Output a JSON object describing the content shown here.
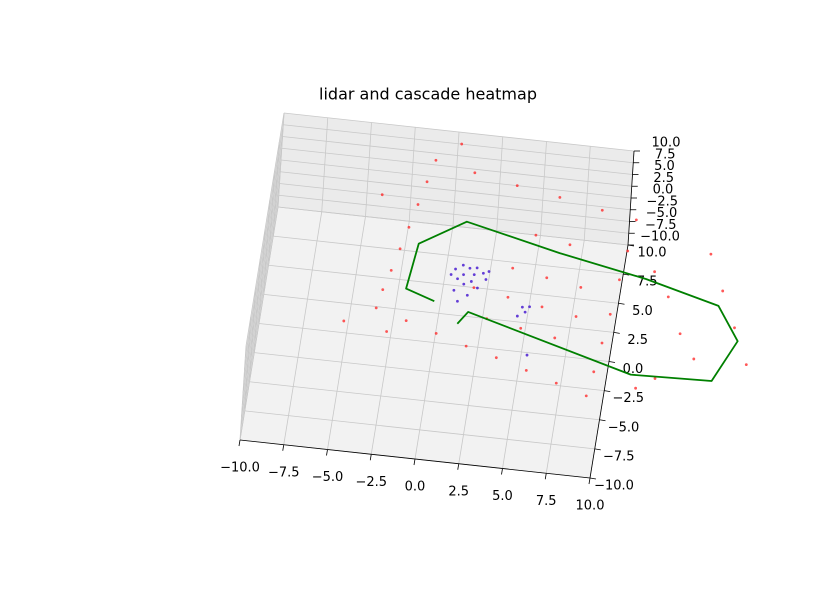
{
  "chart_data": {
    "type": "scatter3d",
    "title": "lidar and cascade heatmap",
    "xlim": [
      -10,
      10
    ],
    "ylim": [
      -10,
      10
    ],
    "zlim": [
      -10,
      10
    ],
    "xticks": [
      {
        "value": -10,
        "label": "−10.0"
      },
      {
        "value": -7.5,
        "label": "−7.5"
      },
      {
        "value": -5,
        "label": "−5.0"
      },
      {
        "value": -2.5,
        "label": "−2.5"
      },
      {
        "value": 0,
        "label": "0.0"
      },
      {
        "value": 2.5,
        "label": "2.5"
      },
      {
        "value": 5,
        "label": "5.0"
      },
      {
        "value": 7.5,
        "label": "7.5"
      },
      {
        "value": 10,
        "label": "10.0"
      }
    ],
    "yticks": [
      {
        "value": -10,
        "label": "−10.0"
      },
      {
        "value": -7.5,
        "label": "−7.5"
      },
      {
        "value": -5,
        "label": "−5.0"
      },
      {
        "value": -2.5,
        "label": "−2.5"
      },
      {
        "value": 0,
        "label": "0.0"
      },
      {
        "value": 2.5,
        "label": "2.5"
      },
      {
        "value": 5,
        "label": "5.0"
      },
      {
        "value": 7.5,
        "label": "7.5"
      },
      {
        "value": 10,
        "label": "10.0"
      }
    ],
    "zticks": [
      {
        "value": -10,
        "label": "−10.0"
      },
      {
        "value": -7.5,
        "label": "−7.5"
      },
      {
        "value": -5,
        "label": "−5.0"
      },
      {
        "value": -2.5,
        "label": "−2.5"
      },
      {
        "value": 0,
        "label": "0.0"
      },
      {
        "value": 2.5,
        "label": "2.5"
      },
      {
        "value": 5,
        "label": "5.0"
      },
      {
        "value": 7.5,
        "label": "7.5"
      },
      {
        "value": 10,
        "label": "10.0"
      }
    ],
    "grid": true,
    "series": [
      {
        "style": "points",
        "color": "#ff2020",
        "x": [
          -1.3,
          -1.6,
          -1.9,
          -2.2,
          -2.5,
          -2.8,
          -3.1,
          -3.3,
          -1.5,
          0.3,
          2.1,
          3.9,
          5.7,
          7.5,
          9.3,
          9.5,
          9.7,
          9.9,
          10.1,
          10.3,
          10.5,
          8.5,
          6,
          3.5,
          1,
          2,
          4,
          6,
          8,
          3,
          5,
          7,
          4,
          6,
          8,
          5,
          7,
          12,
          13,
          14,
          15,
          16,
          17,
          13,
          18,
          15,
          12,
          -4,
          -5,
          0,
          -2.5
        ],
        "y": [
          11.4,
          9.5,
          7.5,
          5.5,
          3.6,
          1.7,
          0,
          -1.6,
          -2.4,
          -3.2,
          -4,
          -4.7,
          -5.5,
          -6.3,
          -7.1,
          -5,
          -2.5,
          0,
          3,
          5.5,
          8.2,
          8.7,
          9.4,
          10,
          10.7,
          1,
          0.5,
          0,
          -0.5,
          -1.5,
          -2,
          -2.5,
          3,
          2.5,
          2,
          6,
          5.5,
          4,
          2,
          -1,
          -3,
          3,
          0,
          -5,
          -3,
          6,
          -6,
          8,
          -3,
          13,
          -3.5
        ],
        "z": [
          0,
          0,
          0,
          0,
          0,
          0,
          0,
          0,
          0,
          0,
          0,
          0,
          0,
          0,
          0,
          0,
          0,
          0,
          0,
          0,
          0,
          0,
          0,
          0,
          0,
          0,
          0,
          0,
          0,
          0,
          0,
          0,
          0,
          0,
          0,
          0,
          0,
          0,
          0,
          0,
          0,
          0,
          0,
          0,
          0,
          0,
          0,
          0,
          0,
          0,
          0
        ]
      },
      {
        "style": "points",
        "color": "#3300cc",
        "x": [
          0.8,
          1.2,
          1.6,
          2.0,
          2.4,
          2.6,
          1.0,
          1.4,
          1.8,
          2.2,
          0.6,
          1.9,
          1.3,
          2.7,
          0.9,
          1.7,
          1.2,
          4.9,
          5.1,
          5.3,
          4.7,
          5.6
        ],
        "y": [
          2.4,
          2.8,
          2.6,
          2.7,
          2.3,
          1.8,
          1.6,
          1.2,
          1.5,
          1.0,
          1.9,
          2.1,
          2.0,
          2.5,
          0.6,
          0.3,
          -0.3,
          -0.2,
          -0.6,
          -0.1,
          -1.0,
          -4.2
        ],
        "z": [
          0,
          0,
          0,
          0,
          0,
          0,
          0,
          0,
          0,
          0,
          0,
          0,
          0,
          0,
          0,
          0,
          0,
          0,
          0,
          0,
          0,
          0
        ]
      },
      {
        "style": "line",
        "color": "#008000",
        "x": [
          -0.1,
          -1.8,
          -1.5,
          1.0,
          6.5,
          11.6,
          15.9,
          17.3,
          16.2,
          11.6,
          4.7,
          1.9,
          1.4
        ],
        "y": [
          -0.5,
          0.3,
          4.2,
          6.5,
          4.7,
          3.3,
          1.7,
          -1.1,
          -4.7,
          -4.9,
          -2.2,
          -1.1,
          -2.2
        ],
        "z": [
          0,
          0,
          0,
          0,
          0,
          0,
          0,
          0,
          0,
          0,
          0,
          0,
          0
        ]
      }
    ]
  }
}
